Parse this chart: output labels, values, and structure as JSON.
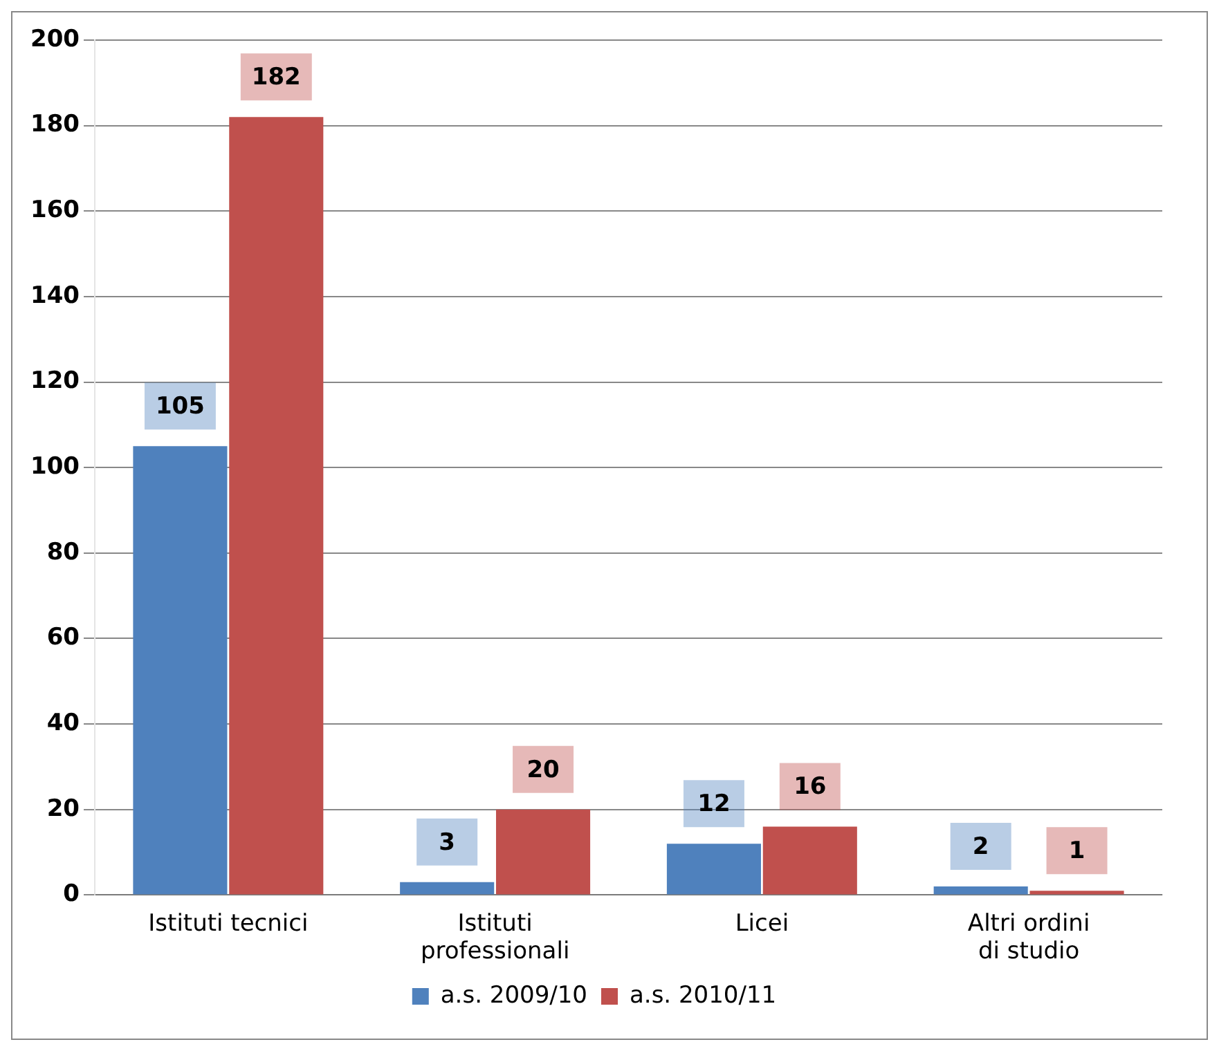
{
  "chart_data": {
    "type": "bar",
    "categories": [
      "Istituti tecnici",
      "Istituti professionali",
      "Licei",
      "Altri ordini di studio"
    ],
    "series": [
      {
        "name": "a.s. 2009/10",
        "color": "#4f81bd",
        "values": [
          105,
          3,
          12,
          2
        ]
      },
      {
        "name": "a.s. 2010/11",
        "color": "#c0504d",
        "values": [
          182,
          20,
          16,
          1
        ]
      }
    ],
    "ylim": [
      0,
      200
    ],
    "yticks": [
      0,
      20,
      40,
      60,
      80,
      100,
      120,
      140,
      160,
      180,
      200
    ],
    "grid": "y",
    "legend": "bottom",
    "data_labels": true
  }
}
